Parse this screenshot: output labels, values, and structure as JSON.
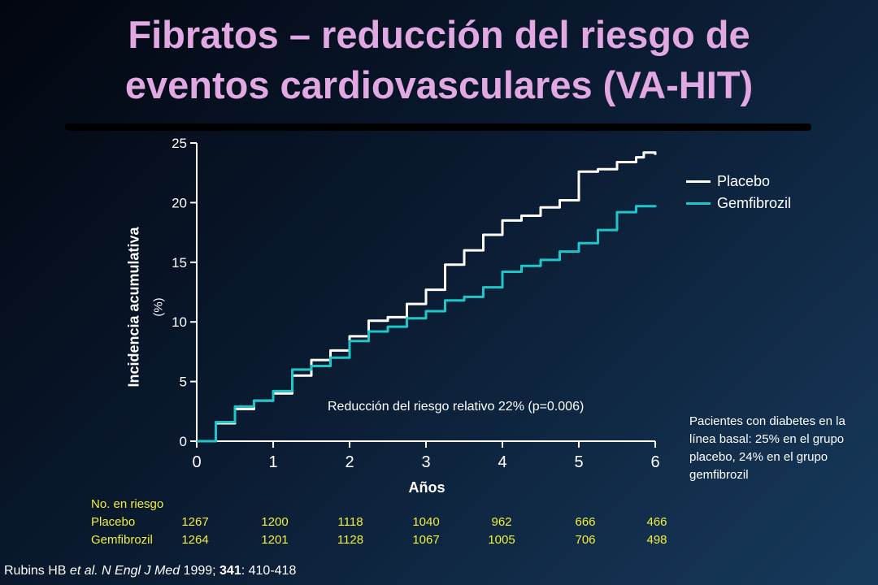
{
  "title_line1": "Fibratos – reducción del riesgo de",
  "title_line2": "eventos cardiovasculares (VA-HIT)",
  "colors": {
    "title": "#e2a8e2",
    "placebo": "#ffffff",
    "gemfibrozil": "#1fc6c9",
    "risk_table": "#f2ef3c"
  },
  "chart_data": {
    "type": "line",
    "ylabel": "Incidencia acumulativa",
    "ylabel_unit": "(%)",
    "xlabel": "Años",
    "xlim": [
      0,
      6
    ],
    "ylim": [
      0,
      25
    ],
    "xticks": [
      "0",
      "1",
      "2",
      "3",
      "4",
      "5",
      "6"
    ],
    "yticks": [
      "0",
      "5",
      "10",
      "15",
      "20",
      "25"
    ],
    "grid": false,
    "legend_position": "top-right",
    "annotation": "Reducción del riesgo relativo 22% (p=0.006)",
    "series": [
      {
        "name": "Placebo",
        "x": [
          0,
          0.25,
          0.5,
          0.75,
          1.0,
          1.25,
          1.5,
          1.75,
          2.0,
          2.25,
          2.5,
          2.75,
          3.0,
          3.25,
          3.5,
          3.75,
          4.0,
          4.25,
          4.5,
          4.75,
          5.0,
          5.25,
          5.5,
          5.75,
          5.85,
          6.0
        ],
        "y": [
          0,
          1.5,
          2.7,
          3.4,
          4.0,
          5.5,
          6.8,
          7.6,
          8.8,
          10.1,
          10.4,
          11.5,
          12.7,
          14.8,
          16.0,
          17.3,
          18.5,
          18.9,
          19.6,
          20.2,
          22.6,
          22.8,
          23.4,
          23.8,
          24.2,
          24.0
        ]
      },
      {
        "name": "Gemfibrozil",
        "x": [
          0,
          0.25,
          0.5,
          0.75,
          1.0,
          1.25,
          1.5,
          1.75,
          2.0,
          2.25,
          2.5,
          2.75,
          3.0,
          3.25,
          3.5,
          3.75,
          4.0,
          4.25,
          4.5,
          4.75,
          5.0,
          5.25,
          5.5,
          5.75,
          6.0
        ],
        "y": [
          0,
          1.6,
          2.9,
          3.4,
          4.2,
          6.0,
          6.3,
          7.0,
          8.4,
          9.2,
          9.6,
          10.3,
          10.9,
          11.8,
          12.1,
          12.9,
          14.2,
          14.7,
          15.2,
          15.9,
          16.6,
          17.7,
          19.2,
          19.7,
          19.8
        ]
      }
    ]
  },
  "note": "Pacientes con diabetes en la línea basal: 25% en el grupo placebo, 24% en el grupo gemfibrozil",
  "risk_table": {
    "header": "No. en riesgo",
    "rows": [
      {
        "name": "Placebo",
        "values": [
          "1267",
          "1200",
          "1118",
          "1040",
          "962",
          "666",
          "466"
        ]
      },
      {
        "name": "Gemfibrozil",
        "values": [
          "1264",
          "1201",
          "1128",
          "1067",
          "1005",
          "706",
          "498"
        ]
      }
    ]
  },
  "citation": {
    "part1": "Rubins HB ",
    "part2": "et al. N Engl J Med",
    "part3": " 1999; ",
    "part4": "341",
    "part5": ": 410-418"
  }
}
